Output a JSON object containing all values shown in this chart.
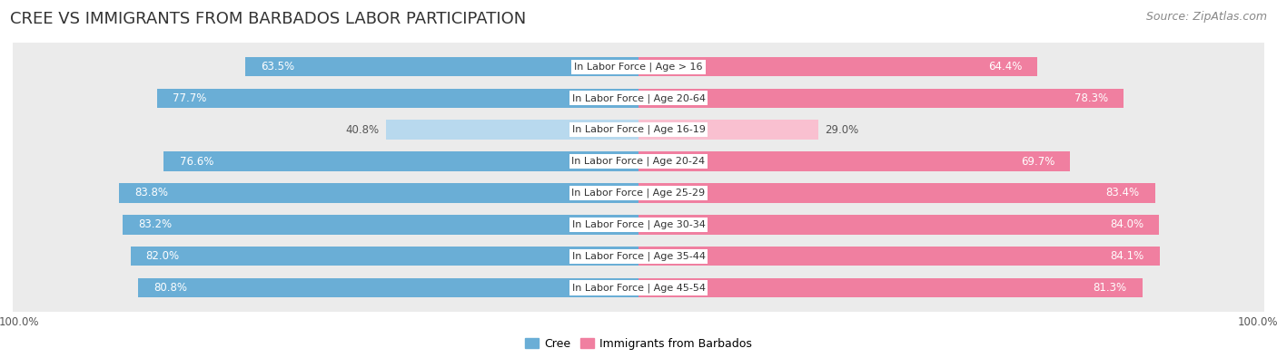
{
  "title": "CREE VS IMMIGRANTS FROM BARBADOS LABOR PARTICIPATION",
  "source": "Source: ZipAtlas.com",
  "categories": [
    "In Labor Force | Age > 16",
    "In Labor Force | Age 20-64",
    "In Labor Force | Age 16-19",
    "In Labor Force | Age 20-24",
    "In Labor Force | Age 25-29",
    "In Labor Force | Age 30-34",
    "In Labor Force | Age 35-44",
    "In Labor Force | Age 45-54"
  ],
  "cree_values": [
    63.5,
    77.7,
    40.8,
    76.6,
    83.8,
    83.2,
    82.0,
    80.8
  ],
  "barbados_values": [
    64.4,
    78.3,
    29.0,
    69.7,
    83.4,
    84.0,
    84.1,
    81.3
  ],
  "cree_color": "#6aaed6",
  "cree_color_light": "#b8d9ee",
  "barbados_color": "#f07fa0",
  "barbados_color_light": "#f9c0d0",
  "row_bg_color": "#ebebeb",
  "title_fontsize": 13,
  "source_fontsize": 9,
  "bar_label_fontsize": 8.5,
  "cat_label_fontsize": 8,
  "legend_fontsize": 9,
  "bar_max": 100.0,
  "legend_cree": "Cree",
  "legend_barbados": "Immigrants from Barbados"
}
